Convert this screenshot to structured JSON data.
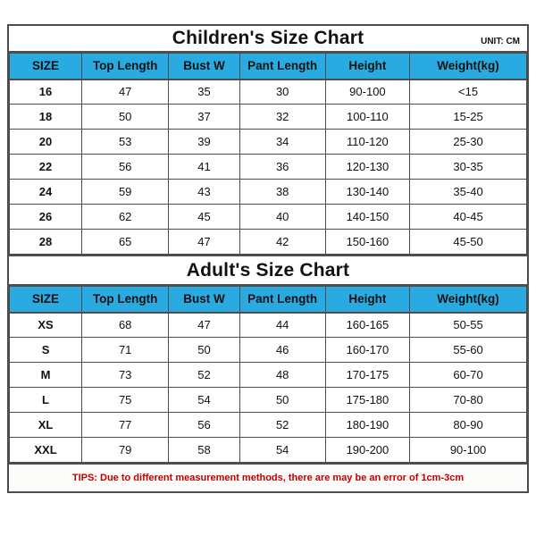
{
  "page": {
    "unit_label": "UNIT: CM",
    "tips": "TIPS: Due to different measurement methods, there are may be an error of 1cm-3cm"
  },
  "columns": [
    "SIZE",
    "Top Length",
    "Bust W",
    "Pant Length",
    "Height",
    "Weight(kg)"
  ],
  "children_chart": {
    "title": "Children's Size Chart",
    "rows": [
      [
        "16",
        "47",
        "35",
        "30",
        "90-100",
        "<15"
      ],
      [
        "18",
        "50",
        "37",
        "32",
        "100-110",
        "15-25"
      ],
      [
        "20",
        "53",
        "39",
        "34",
        "110-120",
        "25-30"
      ],
      [
        "22",
        "56",
        "41",
        "36",
        "120-130",
        "30-35"
      ],
      [
        "24",
        "59",
        "43",
        "38",
        "130-140",
        "35-40"
      ],
      [
        "26",
        "62",
        "45",
        "40",
        "140-150",
        "40-45"
      ],
      [
        "28",
        "65",
        "47",
        "42",
        "150-160",
        "45-50"
      ]
    ]
  },
  "adult_chart": {
    "title": "Adult's Size Chart",
    "rows": [
      [
        "XS",
        "68",
        "47",
        "44",
        "160-165",
        "50-55"
      ],
      [
        "S",
        "71",
        "50",
        "46",
        "160-170",
        "55-60"
      ],
      [
        "M",
        "73",
        "52",
        "48",
        "170-175",
        "60-70"
      ],
      [
        "L",
        "75",
        "54",
        "50",
        "175-180",
        "70-80"
      ],
      [
        "XL",
        "77",
        "56",
        "52",
        "180-190",
        "80-90"
      ],
      [
        "XXL",
        "79",
        "58",
        "54",
        "190-200",
        "90-100"
      ]
    ]
  },
  "colors": {
    "header_bg": "#29abe2",
    "border": "#4d4d4d",
    "text": "#111111",
    "tips_text": "#c00000",
    "page_bg": "#ffffff"
  },
  "chart_data": [
    {
      "type": "table",
      "title": "Children's Size Chart",
      "unit": "CM",
      "columns": [
        "SIZE",
        "Top Length",
        "Bust W",
        "Pant Length",
        "Height",
        "Weight(kg)"
      ],
      "rows": [
        [
          "16",
          "47",
          "35",
          "30",
          "90-100",
          "<15"
        ],
        [
          "18",
          "50",
          "37",
          "32",
          "100-110",
          "15-25"
        ],
        [
          "20",
          "53",
          "39",
          "34",
          "110-120",
          "25-30"
        ],
        [
          "22",
          "56",
          "41",
          "36",
          "120-130",
          "30-35"
        ],
        [
          "24",
          "59",
          "43",
          "38",
          "130-140",
          "35-40"
        ],
        [
          "26",
          "62",
          "45",
          "40",
          "140-150",
          "40-45"
        ],
        [
          "28",
          "65",
          "47",
          "42",
          "150-160",
          "45-50"
        ]
      ]
    },
    {
      "type": "table",
      "title": "Adult's Size Chart",
      "unit": "CM",
      "columns": [
        "SIZE",
        "Top Length",
        "Bust W",
        "Pant Length",
        "Height",
        "Weight(kg)"
      ],
      "rows": [
        [
          "XS",
          "68",
          "47",
          "44",
          "160-165",
          "50-55"
        ],
        [
          "S",
          "71",
          "50",
          "46",
          "160-170",
          "55-60"
        ],
        [
          "M",
          "73",
          "52",
          "48",
          "170-175",
          "60-70"
        ],
        [
          "L",
          "75",
          "54",
          "50",
          "175-180",
          "70-80"
        ],
        [
          "XL",
          "77",
          "56",
          "52",
          "180-190",
          "80-90"
        ],
        [
          "XXL",
          "79",
          "58",
          "54",
          "190-200",
          "90-100"
        ]
      ],
      "annotation": "TIPS: Due to different measurement methods, there are may be an error of 1cm-3cm"
    }
  ]
}
